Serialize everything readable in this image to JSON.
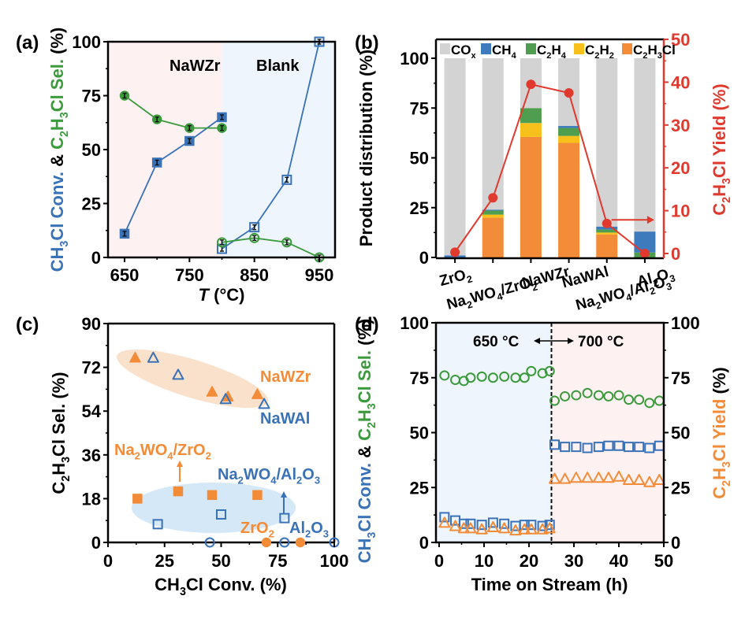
{
  "chart_data": [
    {
      "panel": "(a)",
      "type": "line",
      "title": "",
      "xlabel": "T (°C)",
      "ylabel_parts": [
        {
          "text": "CH3Cl Conv.",
          "color": "#3a72b8"
        },
        {
          "text": " & ",
          "color": "#000000"
        },
        {
          "text": "C2H3Cl Sel.",
          "color": "#3b9a3b"
        },
        {
          "text": " (%)",
          "color": "#000000"
        }
      ],
      "xlim": [
        625,
        975
      ],
      "ylim": [
        0,
        100
      ],
      "xticks": [
        650,
        750,
        850,
        950
      ],
      "yticks": [
        0,
        25,
        50,
        75,
        100
      ],
      "regions": [
        {
          "label": "NaWZr",
          "x": [
            625,
            800
          ],
          "color": "#fdf1f2"
        },
        {
          "label": "Blank",
          "x": [
            800,
            975
          ],
          "color": "#eef5fc"
        }
      ],
      "series": [
        {
          "name": "NaWZr CH3Cl Conv.",
          "marker": "square",
          "color": "#3a72b8",
          "x": [
            650,
            700,
            750,
            800
          ],
          "y": [
            11,
            44,
            54,
            65
          ]
        },
        {
          "name": "NaWZr C2H3Cl Sel.",
          "marker": "circle",
          "color": "#3b9a3b",
          "x": [
            650,
            700,
            750,
            800
          ],
          "y": [
            75,
            64,
            60,
            60
          ]
        },
        {
          "name": "Blank CH3Cl Conv.",
          "marker": "square-open",
          "color": "#3a72b8",
          "x": [
            800,
            850,
            900,
            950
          ],
          "y": [
            4,
            14,
            36,
            100
          ]
        },
        {
          "name": "Blank C2H3Cl Sel.",
          "marker": "circle-open",
          "color": "#3b9a3b",
          "x": [
            800,
            850,
            900,
            950
          ],
          "y": [
            7,
            9,
            7,
            0
          ]
        }
      ]
    },
    {
      "panel": "(b)",
      "type": "bar",
      "stacked": true,
      "ylabel": "Product distribution (%)",
      "y2label": "C2H3Cl Yield (%)",
      "ylim": [
        0,
        110
      ],
      "y2lim": [
        0,
        50
      ],
      "yticks": [
        0,
        25,
        50,
        75,
        100
      ],
      "y2ticks": [
        0,
        10,
        20,
        30,
        40,
        50
      ],
      "legend_position": "top",
      "categories": [
        "ZrO2",
        "Na2WO4/ZrO2",
        "NaWZr",
        "NaWAl",
        "Na2WO4/Al2O3",
        "Al2O3"
      ],
      "category_labels": [
        [
          {
            "t": "ZrO"
          },
          {
            "t": "2",
            "sub": true
          }
        ],
        [
          {
            "t": "Na"
          },
          {
            "t": "2",
            "sub": true
          },
          {
            "t": "WO"
          },
          {
            "t": "4",
            "sub": true
          },
          {
            "t": "/ZrO"
          },
          {
            "t": "2",
            "sub": true
          }
        ],
        [
          {
            "t": "NaWZr"
          }
        ],
        [
          {
            "t": "NaWAl"
          }
        ],
        [
          {
            "t": "Na"
          },
          {
            "t": "2",
            "sub": true
          },
          {
            "t": "WO"
          },
          {
            "t": "4",
            "sub": true
          },
          {
            "t": "/Al"
          },
          {
            "t": "2",
            "sub": true
          },
          {
            "t": "O"
          },
          {
            "t": "3",
            "sub": true
          }
        ],
        [
          {
            "t": "Al"
          },
          {
            "t": "2",
            "sub": true
          },
          {
            "t": "O"
          },
          {
            "t": "3",
            "sub": true
          }
        ]
      ],
      "series": [
        {
          "name": "C2H3Cl",
          "label": [
            {
              "t": "C"
            },
            {
              "t": "2",
              "sub": true
            },
            {
              "t": "H"
            },
            {
              "t": "3",
              "sub": true
            },
            {
              "t": "Cl"
            }
          ],
          "color": "#f28c38",
          "values": [
            0,
            20,
            60.5,
            57.5,
            11.5,
            0
          ]
        },
        {
          "name": "C2H2",
          "label": [
            {
              "t": "C"
            },
            {
              "t": "2",
              "sub": true
            },
            {
              "t": "H"
            },
            {
              "t": "2",
              "sub": true
            }
          ],
          "color": "#f7c01b",
          "values": [
            0,
            1.5,
            7,
            3.5,
            1,
            0
          ]
        },
        {
          "name": "C2H4",
          "label": [
            {
              "t": "C"
            },
            {
              "t": "2",
              "sub": true
            },
            {
              "t": "H"
            },
            {
              "t": "4",
              "sub": true
            }
          ],
          "color": "#4f9e4f",
          "values": [
            0,
            2,
            7.5,
            4,
            1.5,
            2.5
          ]
        },
        {
          "name": "CH4",
          "label": [
            {
              "t": "CH"
            },
            {
              "t": "4",
              "sub": true
            }
          ],
          "color": "#3e7bbd",
          "values": [
            1,
            0.5,
            0,
            1,
            1.5,
            10.5
          ]
        },
        {
          "name": "COx",
          "label": [
            {
              "t": "CO"
            },
            {
              "t": "x",
              "sub": true
            }
          ],
          "color": "#d3d3d3",
          "values": [
            99,
            76,
            25,
            34,
            84.5,
            87
          ]
        }
      ],
      "yield_series": {
        "name": "C2H3Cl Yield",
        "color": "#e0392d",
        "values": [
          0.3,
          13,
          39.5,
          37.5,
          7,
          0
        ]
      }
    },
    {
      "panel": "(c)",
      "type": "scatter",
      "xlabel": "CH3Cl Conv. (%)",
      "ylabel": "C2H3Cl Sel. (%)",
      "xlim": [
        0,
        100
      ],
      "ylim": [
        0,
        90
      ],
      "xticks": [
        0,
        25,
        50,
        75,
        100
      ],
      "yticks": [
        0,
        18,
        36,
        54,
        72,
        90
      ],
      "series": [
        {
          "name": "NaWZr",
          "marker": "triangle",
          "color": "#f28c38",
          "x": [
            12,
            46,
            53,
            66
          ],
          "y": [
            76,
            62,
            60,
            61
          ]
        },
        {
          "name": "NaWAl",
          "marker": "triangle-open",
          "color": "#3a72b8",
          "x": [
            20,
            31,
            52,
            69
          ],
          "y": [
            76,
            69,
            59,
            57
          ]
        },
        {
          "name": "Na2WO4/ZrO2",
          "marker": "square",
          "color": "#f28c38",
          "x": [
            13,
            31,
            46,
            66
          ],
          "y": [
            18,
            21,
            19.5,
            19.5
          ]
        },
        {
          "name": "Na2WO4/Al2O3",
          "marker": "square-open",
          "color": "#3a72b8",
          "x": [
            22,
            50,
            78
          ],
          "y": [
            7.5,
            11.5,
            10
          ]
        },
        {
          "name": "ZrO2",
          "marker": "circle",
          "color": "#f28c38",
          "x": [
            70,
            85
          ],
          "y": [
            0,
            0
          ]
        },
        {
          "name": "Al2O3",
          "marker": "circle-open",
          "color": "#3a72b8",
          "x": [
            45,
            78,
            100
          ],
          "y": [
            0,
            0,
            0
          ]
        }
      ],
      "annotations": [
        {
          "text": "NaWZr",
          "color": "#f28c38"
        },
        {
          "text": "NaWAl",
          "color": "#3a72b8"
        },
        {
          "text": "Na2WO4/ZrO2",
          "color": "#f28c38"
        },
        {
          "text": "Na2WO4/Al2O3",
          "color": "#3a72b8"
        },
        {
          "text": "ZrO2",
          "color": "#f28c38"
        },
        {
          "text": "Al2O3",
          "color": "#3a72b8"
        }
      ],
      "ellipses": [
        {
          "group": "triangles",
          "color": "#f9dcc2"
        },
        {
          "group": "squares",
          "color": "#cfe5f7"
        }
      ]
    },
    {
      "panel": "(d)",
      "type": "scatter",
      "xlabel": "Time on Stream (h)",
      "ylabel_parts": [
        {
          "text": "CH3Cl Conv.",
          "color": "#3a72b8"
        },
        {
          "text": " & ",
          "color": "#000000"
        },
        {
          "text": "C2H3Cl Sel.",
          "color": "#3b9a3b"
        },
        {
          "text": " (%)",
          "color": "#000000"
        }
      ],
      "y2label": "C2H3Cl Yield (%)",
      "xlim": [
        0,
        50
      ],
      "ylim": [
        0,
        100
      ],
      "y2lim": [
        0,
        100
      ],
      "xticks": [
        0,
        10,
        20,
        30,
        40,
        50
      ],
      "yticks": [
        0,
        25,
        50,
        75,
        100
      ],
      "annotation": "650 °C ↔ 700 °C",
      "temp_left": "650 °C",
      "temp_right": "700 °C",
      "switch_time": 25,
      "regions": [
        {
          "x": [
            0,
            25
          ],
          "color": "#eef5fc"
        },
        {
          "x": [
            25,
            50
          ],
          "color": "#fdf1f2"
        }
      ],
      "series": [
        {
          "name": "C2H3Cl Sel.",
          "marker": "circle-open",
          "color": "#3b9a3b",
          "x": [
            1.2,
            3.6,
            5.5,
            7,
            9.5,
            12,
            14.5,
            17,
            19,
            20.5,
            23,
            24.6,
            25.7,
            28,
            30.5,
            33,
            35.5,
            37.7,
            40,
            42.2,
            44.5,
            46.8,
            49
          ],
          "y": [
            76,
            74,
            73.5,
            75,
            75.5,
            75,
            75.5,
            75,
            75,
            78,
            77,
            78,
            64.5,
            66.5,
            67,
            68,
            67,
            66.5,
            67,
            65,
            65,
            63.5,
            64.5
          ]
        },
        {
          "name": "CH3Cl Conv.",
          "marker": "square-open",
          "color": "#3a72b8",
          "x": [
            1.2,
            3.6,
            5.5,
            7,
            9.5,
            12,
            14.5,
            17,
            19,
            20.5,
            23,
            24.6,
            25.7,
            28,
            30.5,
            33,
            35.5,
            37.7,
            40,
            42.2,
            44.5,
            46.8,
            49
          ],
          "y": [
            11.5,
            10,
            8.5,
            8.5,
            8,
            9,
            8.5,
            7.5,
            8,
            8,
            7.5,
            8,
            44.5,
            43.5,
            43.5,
            43,
            43.5,
            44,
            44,
            43.5,
            43.5,
            43,
            44
          ]
        },
        {
          "name": "C2H3Cl Yield",
          "axis": "right",
          "marker": "triangle-open",
          "color": "#f28c38",
          "x": [
            1.2,
            3.6,
            5.5,
            7,
            9.5,
            12,
            14.5,
            17,
            19,
            20.5,
            23,
            24.6,
            25.7,
            28,
            30.5,
            33,
            35.5,
            37.7,
            40,
            42.2,
            44.5,
            46.8,
            49
          ],
          "y": [
            9,
            7.5,
            6.5,
            6.5,
            6,
            7,
            6.5,
            5.5,
            6,
            6,
            6,
            6.5,
            29,
            29,
            29.5,
            29.5,
            29.5,
            29.5,
            30,
            28.5,
            28.5,
            27.5,
            28.5
          ]
        }
      ]
    }
  ],
  "labels": {
    "panel_a": "(a)",
    "panel_b": "(b)",
    "panel_c": "(c)",
    "panel_d": "(d)",
    "a_region1": "NaWZr",
    "a_region2": "Blank",
    "a_xlabel_T": "T",
    "a_xlabel_unit": " (°C)",
    "b_ylabel": "Product distribution (%)",
    "c_xlabel": "CH3Cl Conv. (%)",
    "d_xlabel": "Time on Stream (h)",
    "d_temp_left": "650 °C",
    "d_temp_right": "700 °C"
  }
}
